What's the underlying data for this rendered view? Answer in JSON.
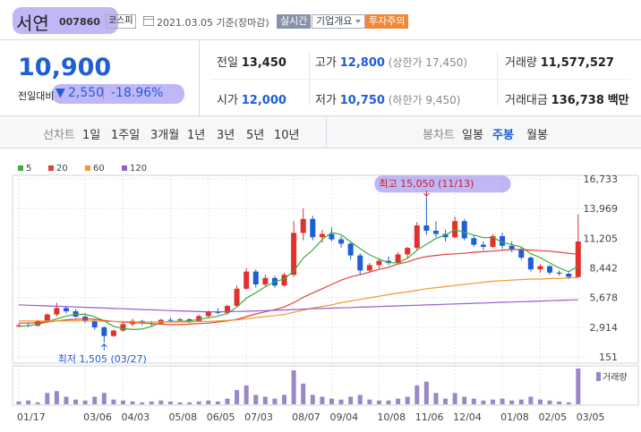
{
  "header": {
    "name": "서연",
    "code": "007860",
    "market": "코스피",
    "date": "2021.03.05 기준(장마감)",
    "buttons": [
      "실시간",
      "기업개요",
      "투자주의"
    ]
  },
  "price": {
    "current": "10,900",
    "change_label": "전일대비",
    "change_arrow": "▼",
    "change": "2,550",
    "change_rate": "-18.96%"
  },
  "quote": {
    "rows": [
      [
        {
          "label": "전일",
          "value": "13,450"
        },
        {
          "label": "고가",
          "value": "12,800",
          "note": "(상한가 17,450)"
        },
        {
          "label": "거래량",
          "value": "11,577,527"
        }
      ],
      [
        {
          "label": "시가",
          "value": "12,000"
        },
        {
          "label": "저가",
          "value": "10,750",
          "note": "(하한가 9,450)"
        },
        {
          "label": "거래대금",
          "value": "136,738",
          "unit": "백만"
        }
      ]
    ]
  },
  "tabs": {
    "line": {
      "label": "선차트",
      "periods": [
        "1일",
        "1주일",
        "3개월",
        "1년",
        "3년",
        "5년",
        "10년"
      ]
    },
    "candle": {
      "label": "봉차트",
      "periods": [
        "일봉",
        "주봉",
        "월봉"
      ]
    }
  },
  "chart_data": {
    "type": "candlestick",
    "categories": [
      "01/17",
      null,
      null,
      null,
      null,
      null,
      null,
      "03/06",
      null,
      null,
      null,
      "04/03",
      null,
      null,
      null,
      null,
      "05/08",
      null,
      null,
      null,
      "06/05",
      null,
      null,
      null,
      "07/03",
      null,
      null,
      null,
      null,
      "08/07",
      null,
      null,
      null,
      "09/04",
      null,
      null,
      null,
      null,
      "10/08",
      null,
      null,
      null,
      "11/06",
      null,
      null,
      null,
      "12/04",
      null,
      null,
      null,
      null,
      "01/08",
      null,
      null,
      null,
      "02/05",
      null,
      null,
      null,
      "03/05"
    ],
    "ohlc": [
      [
        3000,
        3250,
        2900,
        3100
      ],
      [
        3100,
        3350,
        2950,
        3050
      ],
      [
        3050,
        3600,
        3000,
        3500
      ],
      [
        3500,
        4200,
        3400,
        4100
      ],
      [
        4100,
        5200,
        3900,
        4700
      ],
      [
        4700,
        4900,
        4200,
        4400
      ],
      [
        4400,
        4600,
        3800,
        3900
      ],
      [
        3900,
        4200,
        3300,
        3500
      ],
      [
        3500,
        3700,
        2700,
        2900
      ],
      [
        2900,
        3000,
        1505,
        2100
      ],
      [
        2100,
        2700,
        2000,
        2600
      ],
      [
        2600,
        3400,
        2500,
        3200
      ],
      [
        3200,
        3700,
        3000,
        3500
      ],
      [
        3500,
        3600,
        3100,
        3300
      ],
      [
        3300,
        3500,
        3000,
        3250
      ],
      [
        3250,
        3700,
        3200,
        3600
      ],
      [
        3600,
        3800,
        3400,
        3550
      ],
      [
        3550,
        3800,
        3400,
        3650
      ],
      [
        3650,
        3750,
        3300,
        3450
      ],
      [
        3450,
        4100,
        3400,
        3950
      ],
      [
        3950,
        4500,
        3800,
        4350
      ],
      [
        4350,
        4700,
        4100,
        4250
      ],
      [
        4250,
        5000,
        4100,
        4900
      ],
      [
        4900,
        6800,
        4800,
        6500
      ],
      [
        6500,
        8400,
        6400,
        8100
      ],
      [
        8100,
        8300,
        6600,
        6900
      ],
      [
        6900,
        7800,
        6700,
        7500
      ],
      [
        7500,
        7700,
        6600,
        6800
      ],
      [
        6800,
        8000,
        6700,
        7800
      ],
      [
        7800,
        12800,
        7600,
        11700
      ],
      [
        11700,
        14000,
        11000,
        13000
      ],
      [
        13000,
        13300,
        11000,
        11300
      ],
      [
        11300,
        12000,
        10800,
        11600
      ],
      [
        11600,
        12200,
        10900,
        11100
      ],
      [
        11100,
        11400,
        10300,
        10700
      ],
      [
        10700,
        10800,
        9200,
        9600
      ],
      [
        9600,
        9800,
        7800,
        8200
      ],
      [
        8200,
        8900,
        8000,
        8700
      ],
      [
        8700,
        9300,
        8400,
        9100
      ],
      [
        9100,
        9500,
        8700,
        8900
      ],
      [
        8900,
        9900,
        8800,
        9700
      ],
      [
        9700,
        10400,
        9400,
        10300
      ],
      [
        10300,
        12700,
        10100,
        12400
      ],
      [
        12400,
        15050,
        11500,
        11900
      ],
      [
        11900,
        12800,
        11300,
        11600
      ],
      [
        11600,
        12000,
        10900,
        11300
      ],
      [
        11300,
        13200,
        11200,
        12800
      ],
      [
        12800,
        13000,
        11000,
        11200
      ],
      [
        11200,
        11500,
        10400,
        10600
      ],
      [
        10600,
        10900,
        10100,
        10400
      ],
      [
        10400,
        11600,
        10300,
        11400
      ],
      [
        11400,
        11700,
        10200,
        10500
      ],
      [
        10500,
        10900,
        9900,
        10200
      ],
      [
        10200,
        10400,
        9200,
        9400
      ],
      [
        9400,
        9500,
        8100,
        8300
      ],
      [
        8300,
        8800,
        8000,
        8600
      ],
      [
        8600,
        8700,
        7800,
        8000
      ],
      [
        8000,
        8200,
        7700,
        7900
      ],
      [
        7900,
        8000,
        7400,
        7600
      ],
      [
        7600,
        13450,
        7500,
        10900
      ]
    ],
    "up_color": "#e0312d",
    "down_color": "#1e5ed6",
    "ma": [
      {
        "name": "5",
        "color": "#3bae3b",
        "values": [
          3000,
          3050,
          3200,
          3400,
          3690,
          3950,
          4120,
          4120,
          3880,
          3500,
          3000,
          2780,
          2700,
          2740,
          2990,
          3370,
          3440,
          3470,
          3500,
          3640,
          3790,
          3930,
          4180,
          4800,
          5620,
          6130,
          6680,
          7160,
          7420,
          8140,
          9360,
          10120,
          11080,
          11740,
          11540,
          10860,
          10240,
          9660,
          9260,
          8920,
          8920,
          9340,
          10080,
          10640,
          11180,
          11500,
          12000,
          11760,
          11500,
          11260,
          11280,
          10820,
          10620,
          10380,
          9760,
          9400,
          8900,
          8440,
          8080,
          8600
        ]
      },
      {
        "name": "20",
        "color": "#e2413b",
        "values": [
          3300,
          3300,
          3350,
          3400,
          3500,
          3600,
          3650,
          3700,
          3650,
          3550,
          3450,
          3400,
          3350,
          3300,
          3250,
          3200,
          3150,
          3150,
          3200,
          3250,
          3300,
          3400,
          3500,
          3650,
          3900,
          4150,
          4350,
          4550,
          4800,
          5200,
          5700,
          6100,
          6500,
          6900,
          7300,
          7600,
          7800,
          8050,
          8300,
          8500,
          8800,
          9000,
          9300,
          9500,
          9600,
          9700,
          9750,
          9800,
          9900,
          9950,
          10000,
          10100,
          10150,
          10150,
          10100,
          10050,
          10000,
          9900,
          9800,
          9700
        ]
      },
      {
        "name": "60",
        "color": "#f09a2c",
        "values": [
          3500,
          3500,
          3500,
          3500,
          3500,
          3500,
          3500,
          3500,
          3500,
          3450,
          3450,
          3450,
          3400,
          3400,
          3400,
          3400,
          3400,
          3400,
          3400,
          3450,
          3450,
          3500,
          3550,
          3600,
          3700,
          3800,
          3900,
          4000,
          4100,
          4300,
          4500,
          4700,
          4850,
          5000,
          5200,
          5350,
          5500,
          5650,
          5800,
          5950,
          6100,
          6200,
          6350,
          6500,
          6600,
          6700,
          6800,
          6900,
          7000,
          7100,
          7200,
          7250,
          7300,
          7350,
          7400,
          7400,
          7450,
          7450,
          7500,
          7550
        ]
      },
      {
        "name": "120",
        "color": "#9a5bd0",
        "values": [
          5000,
          4960,
          4930,
          4900,
          4870,
          4840,
          4800,
          4770,
          4730,
          4700,
          4660,
          4630,
          4600,
          4560,
          4530,
          4500,
          4460,
          4430,
          4400,
          4370,
          4350,
          4350,
          4360,
          4380,
          4400,
          4430,
          4460,
          4490,
          4520,
          4560,
          4600,
          4630,
          4660,
          4690,
          4720,
          4750,
          4780,
          4810,
          4840,
          4870,
          4900,
          4930,
          4960,
          4990,
          5020,
          5050,
          5080,
          5110,
          5140,
          5170,
          5200,
          5230,
          5260,
          5290,
          5320,
          5350,
          5380,
          5410,
          5440,
          5470
        ]
      }
    ],
    "ylim": [
      151,
      16733
    ],
    "yticks": [
      151,
      {
        "value": 2914,
        "label": "2,914"
      },
      {
        "value": 5678,
        "label": "5,678"
      },
      {
        "value": 8442,
        "label": "8,442"
      },
      {
        "value": 11205,
        "label": "11,205"
      },
      {
        "value": 13969,
        "label": "13,969"
      },
      {
        "value": 16733,
        "label": "16,733"
      }
    ],
    "grid": true,
    "volume_label": "거래량",
    "volume_color": "#9b87c6",
    "volume": [
      3,
      4,
      2,
      12,
      14,
      8,
      5,
      4,
      8,
      12,
      5,
      4,
      3,
      2,
      3,
      4,
      3,
      2,
      2,
      3,
      4,
      3,
      6,
      15,
      20,
      10,
      8,
      6,
      10,
      36,
      22,
      10,
      8,
      6,
      5,
      8,
      10,
      5,
      4,
      4,
      6,
      8,
      20,
      24,
      12,
      6,
      12,
      8,
      6,
      4,
      5,
      6,
      4,
      5,
      8,
      5,
      4,
      3,
      2,
      38
    ],
    "vlim": [
      0,
      38
    ],
    "annotations": {
      "high": "최고 15,050 (11/13)",
      "low": "최저 1,505 (03/27)"
    }
  }
}
